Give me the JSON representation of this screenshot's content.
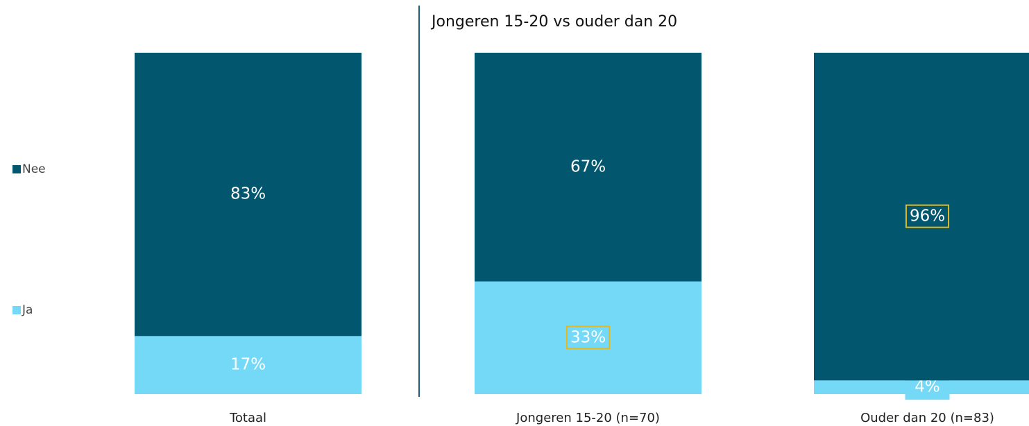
{
  "chart_data": {
    "type": "stacked_bar",
    "title": "Jongeren 15-20 vs ouder dan 20",
    "categories": [
      "Totaal",
      "Jongeren 15-20 (n=70)",
      "Ouder dan 20 (n=83)"
    ],
    "series": [
      {
        "name": "Ja",
        "color": "#73d9f7",
        "values": [
          17,
          33,
          4
        ],
        "value_labels": [
          "17%",
          "33%",
          "4%"
        ]
      },
      {
        "name": "Nee",
        "color": "#02566e",
        "values": [
          83,
          67,
          96
        ],
        "value_labels": [
          "83%",
          "67%",
          "96%"
        ]
      }
    ],
    "ylim": [
      0,
      100
    ],
    "highlight": [
      [
        0,
        1
      ],
      [
        1,
        2
      ]
    ],
    "highlight_color": "#e6b820",
    "legend": "left"
  }
}
